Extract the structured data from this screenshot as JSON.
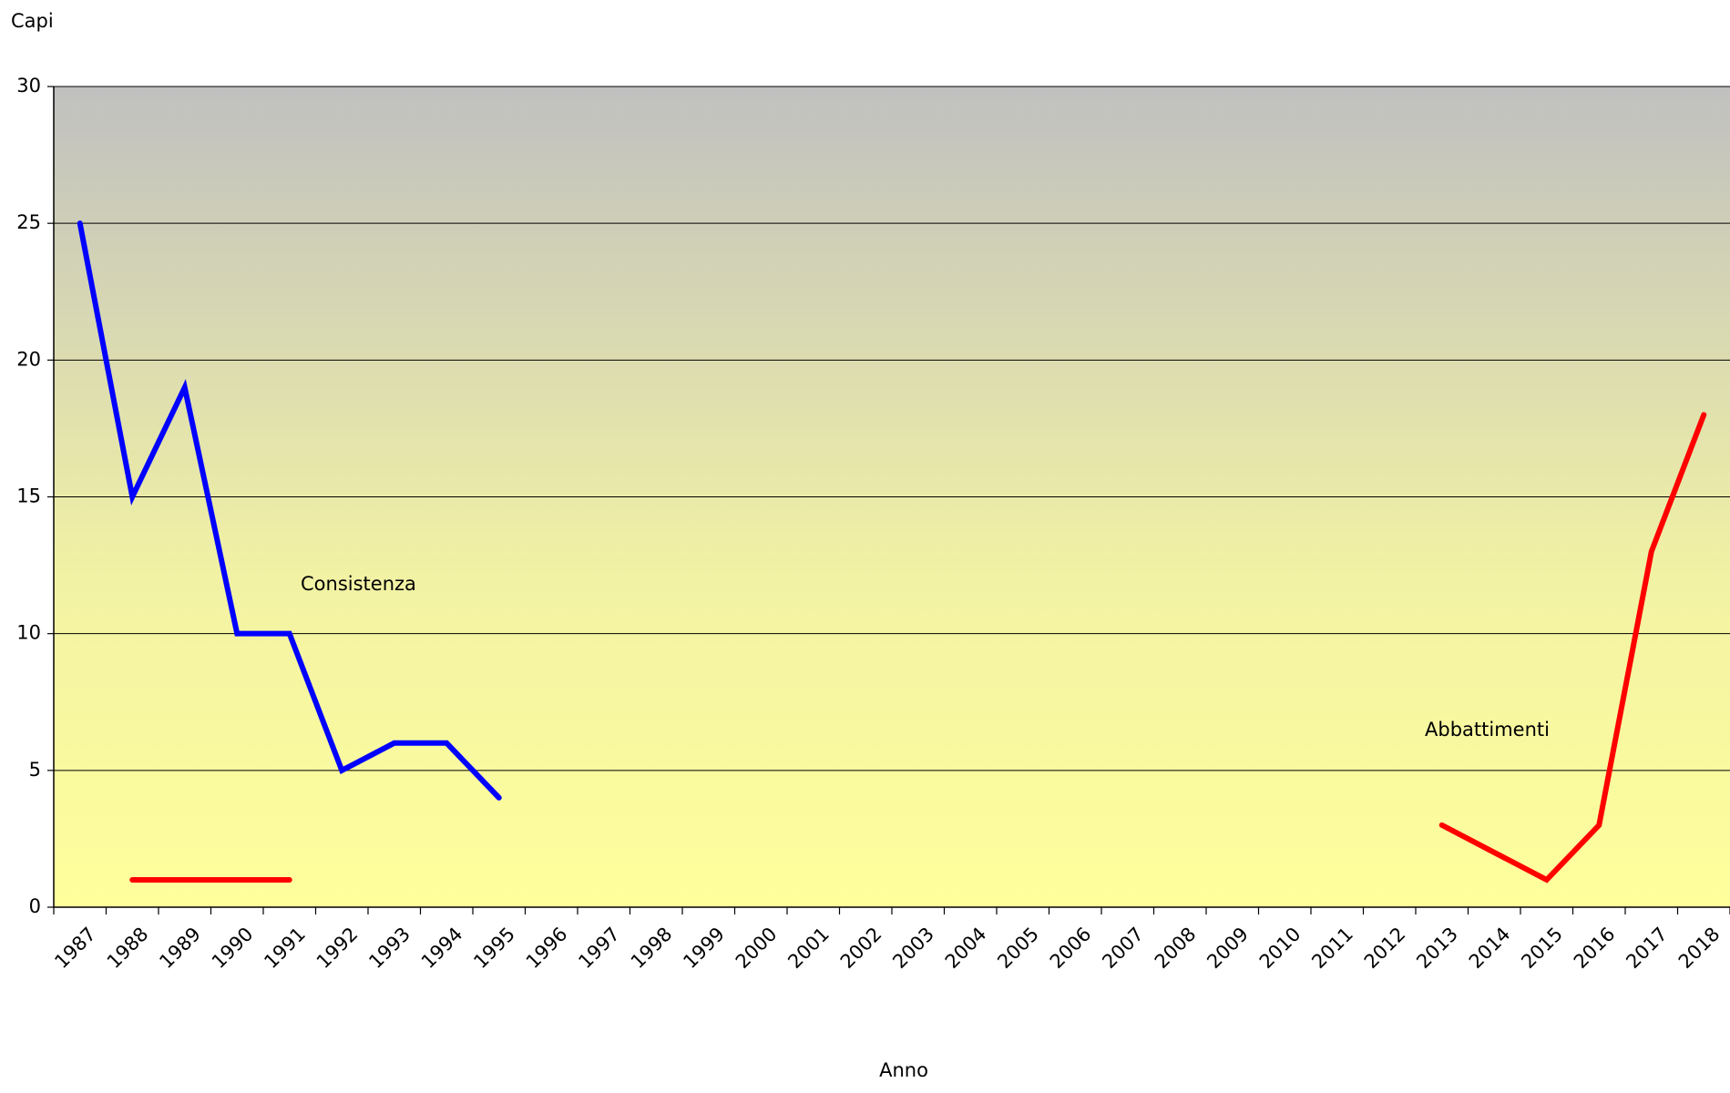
{
  "chart_data": {
    "type": "line",
    "y_label": "Capi",
    "x_label": "Anno",
    "categories": [
      "1987",
      "1988",
      "1989",
      "1990",
      "1991",
      "1992",
      "1993",
      "1994",
      "1995",
      "1996",
      "1997",
      "1998",
      "1999",
      "2000",
      "2001",
      "2002",
      "2003",
      "2004",
      "2005",
      "2006",
      "2007",
      "2008",
      "2009",
      "2010",
      "2011",
      "2012",
      "2013",
      "2014",
      "2015",
      "2016",
      "2017",
      "2018"
    ],
    "series": [
      {
        "name": "Consistenza",
        "color": "#0000ff",
        "values": [
          25,
          15,
          19,
          10,
          10,
          5,
          6,
          6,
          4,
          null,
          null,
          null,
          null,
          null,
          null,
          null,
          null,
          null,
          null,
          null,
          null,
          null,
          null,
          null,
          null,
          null,
          null,
          null,
          null,
          null,
          null,
          null
        ]
      },
      {
        "name": "Abbattimenti",
        "color": "#ff0000",
        "values": [
          null,
          1,
          1,
          1,
          1,
          null,
          null,
          null,
          null,
          null,
          null,
          null,
          null,
          null,
          null,
          null,
          null,
          null,
          null,
          null,
          null,
          null,
          null,
          null,
          null,
          null,
          3,
          2,
          1,
          3,
          13,
          18
        ]
      }
    ],
    "ylim": [
      0,
      30
    ],
    "yticks": [
      0,
      5,
      10,
      15,
      20,
      25,
      30
    ],
    "grid": true
  }
}
